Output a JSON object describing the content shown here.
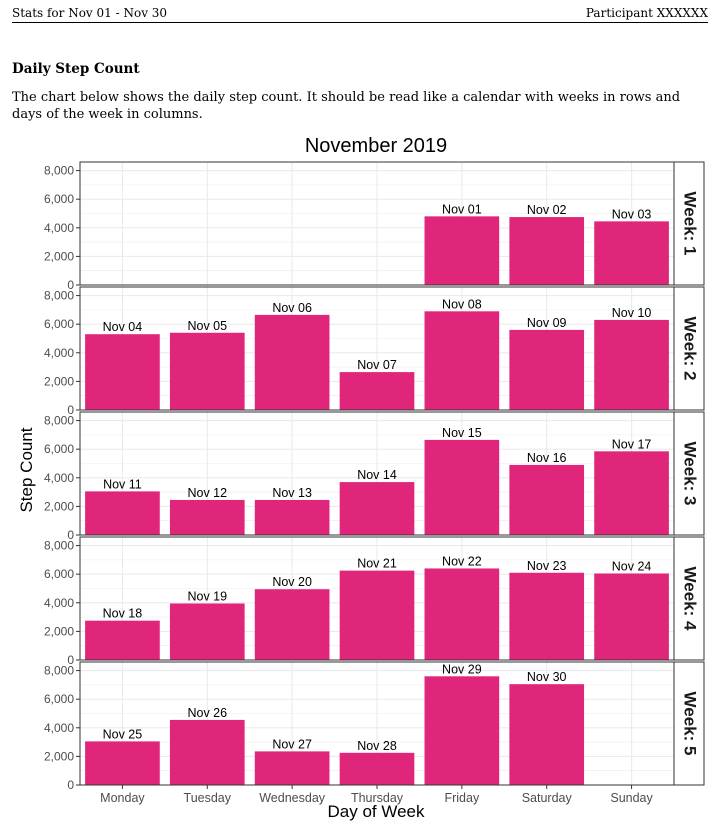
{
  "header": {
    "left": "Stats for Nov 01 - Nov 30",
    "right": "Participant XXXXXX"
  },
  "section": {
    "title": "Daily Step Count",
    "description": "The chart below shows the daily step count. It should be read like a calendar with weeks in rows and days of the week in columns."
  },
  "colors": {
    "bar": "#E0267B",
    "strip": "#FFFFFF",
    "grid": "#EBEBEB",
    "panel_border": "#333333"
  },
  "chart_data": {
    "type": "bar",
    "title": "November 2019",
    "xlabel": "Day of Week",
    "ylabel": "Step Count",
    "categories": [
      "Monday",
      "Tuesday",
      "Wednesday",
      "Thursday",
      "Friday",
      "Saturday",
      "Sunday"
    ],
    "ylim": [
      0,
      8600
    ],
    "yticks": [
      0,
      2000,
      4000,
      6000,
      8000
    ],
    "ytick_labels": [
      "0",
      "2,000",
      "4,000",
      "6,000",
      "8,000"
    ],
    "grid": true,
    "facets": [
      {
        "label": "Week: 1",
        "bars": [
          {
            "day": "Friday",
            "date": "Nov 01",
            "value": 4800
          },
          {
            "day": "Saturday",
            "date": "Nov 02",
            "value": 4750
          },
          {
            "day": "Sunday",
            "date": "Nov 03",
            "value": 4450
          }
        ]
      },
      {
        "label": "Week: 2",
        "bars": [
          {
            "day": "Monday",
            "date": "Nov 04",
            "value": 5300
          },
          {
            "day": "Tuesday",
            "date": "Nov 05",
            "value": 5400
          },
          {
            "day": "Wednesday",
            "date": "Nov 06",
            "value": 6650
          },
          {
            "day": "Thursday",
            "date": "Nov 07",
            "value": 2650
          },
          {
            "day": "Friday",
            "date": "Nov 08",
            "value": 6900
          },
          {
            "day": "Saturday",
            "date": "Nov 09",
            "value": 5600
          },
          {
            "day": "Sunday",
            "date": "Nov 10",
            "value": 6300
          }
        ]
      },
      {
        "label": "Week: 3",
        "bars": [
          {
            "day": "Monday",
            "date": "Nov 11",
            "value": 3050
          },
          {
            "day": "Tuesday",
            "date": "Nov 12",
            "value": 2450
          },
          {
            "day": "Wednesday",
            "date": "Nov 13",
            "value": 2450
          },
          {
            "day": "Thursday",
            "date": "Nov 14",
            "value": 3700
          },
          {
            "day": "Friday",
            "date": "Nov 15",
            "value": 6650
          },
          {
            "day": "Saturday",
            "date": "Nov 16",
            "value": 4900
          },
          {
            "day": "Sunday",
            "date": "Nov 17",
            "value": 5850
          }
        ]
      },
      {
        "label": "Week: 4",
        "bars": [
          {
            "day": "Monday",
            "date": "Nov 18",
            "value": 2750
          },
          {
            "day": "Tuesday",
            "date": "Nov 19",
            "value": 3950
          },
          {
            "day": "Wednesday",
            "date": "Nov 20",
            "value": 4950
          },
          {
            "day": "Thursday",
            "date": "Nov 21",
            "value": 6250
          },
          {
            "day": "Friday",
            "date": "Nov 22",
            "value": 6400
          },
          {
            "day": "Saturday",
            "date": "Nov 23",
            "value": 6100
          },
          {
            "day": "Sunday",
            "date": "Nov 24",
            "value": 6050
          }
        ]
      },
      {
        "label": "Week: 5",
        "bars": [
          {
            "day": "Monday",
            "date": "Nov 25",
            "value": 3050
          },
          {
            "day": "Tuesday",
            "date": "Nov 26",
            "value": 4550
          },
          {
            "day": "Wednesday",
            "date": "Nov 27",
            "value": 2350
          },
          {
            "day": "Thursday",
            "date": "Nov 28",
            "value": 2250
          },
          {
            "day": "Friday",
            "date": "Nov 29",
            "value": 7600
          },
          {
            "day": "Saturday",
            "date": "Nov 30",
            "value": 7050
          }
        ]
      }
    ]
  }
}
